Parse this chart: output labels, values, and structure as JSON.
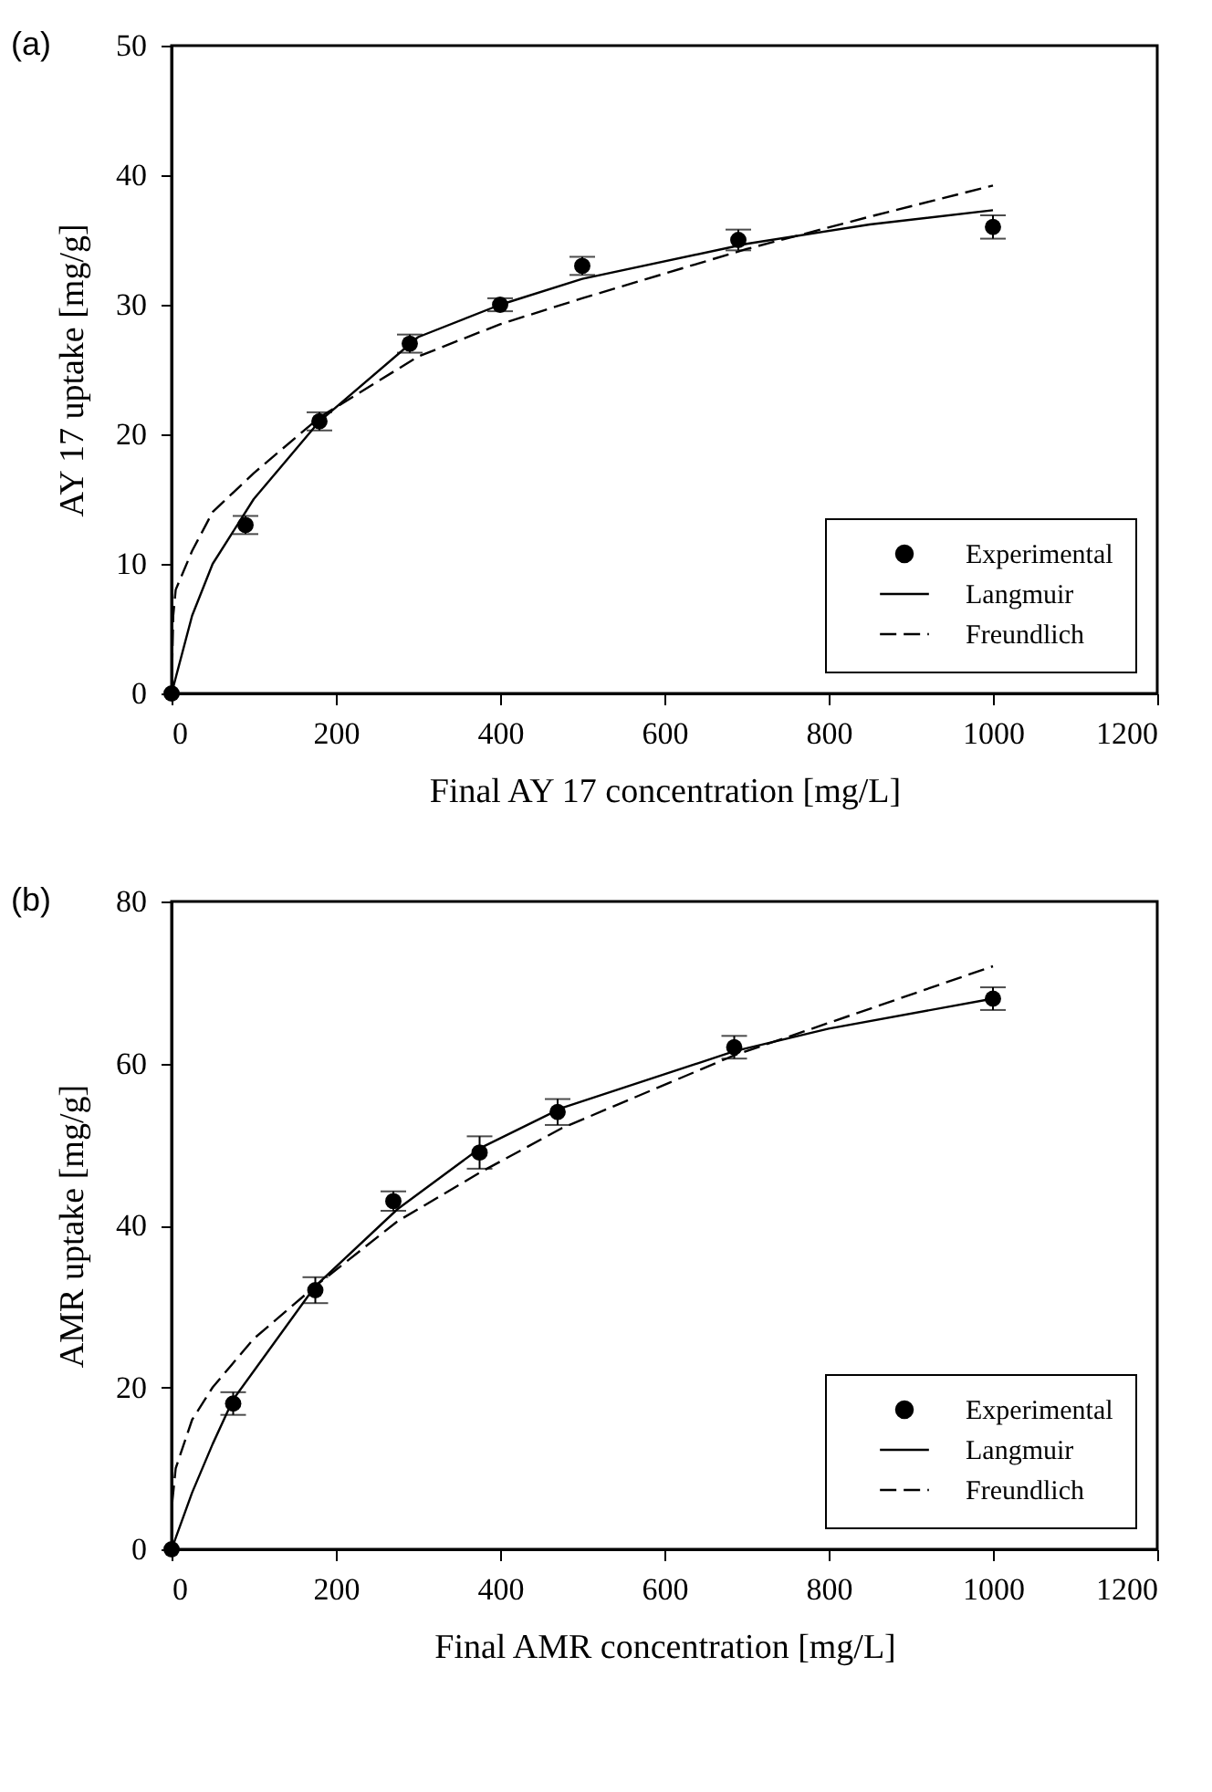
{
  "chart_data": [
    {
      "type": "scatter",
      "title": "(a)",
      "xlabel": "Final AY 17 concentration [mg/L]",
      "ylabel": "AY 17 uptake [mg/g]",
      "xlim": [
        0,
        1200
      ],
      "ylim": [
        0,
        50
      ],
      "xticks": [
        0,
        200,
        400,
        600,
        800,
        1000,
        1200
      ],
      "yticks": [
        0,
        10,
        20,
        30,
        40,
        50
      ],
      "grid": false,
      "legend": "bottom right",
      "series": [
        {
          "name": "Experimental",
          "type": "scatter",
          "marker": "circle",
          "color": "#000000",
          "x": [
            0,
            90,
            180,
            290,
            400,
            500,
            690,
            1000
          ],
          "values": [
            0,
            13,
            21,
            27,
            30,
            33,
            35,
            36
          ],
          "errors": [
            null,
            0.7,
            0.7,
            0.7,
            0.5,
            0.7,
            0.8,
            0.9
          ]
        },
        {
          "name": "Langmuir",
          "type": "line",
          "line_style": "solid",
          "marker": "none",
          "color": "#000000",
          "x": [
            0,
            25,
            50,
            100,
            180,
            300,
            400,
            500,
            700,
            850,
            1000
          ],
          "values": [
            0,
            6,
            10,
            15,
            21,
            27.5,
            30,
            32,
            34.7,
            36.2,
            37.3
          ]
        },
        {
          "name": "Freundlich",
          "type": "line",
          "line_style": "dashed",
          "marker": "none",
          "color": "#000000",
          "x": [
            0,
            2,
            5,
            25,
            50,
            100,
            180,
            300,
            400,
            500,
            700,
            850,
            1000
          ],
          "values": [
            0,
            6,
            8,
            11,
            14,
            17,
            21.3,
            26,
            28.5,
            30.5,
            34.3,
            36.8,
            39.2
          ]
        }
      ]
    },
    {
      "type": "scatter",
      "title": "(b)",
      "xlabel": "Final AMR concentration [mg/L]",
      "ylabel": "AMR uptake [mg/g]",
      "xlim": [
        0,
        1200
      ],
      "ylim": [
        0,
        80
      ],
      "xticks": [
        0,
        200,
        400,
        600,
        800,
        1000,
        1200
      ],
      "yticks": [
        0,
        20,
        40,
        60,
        80
      ],
      "grid": false,
      "legend": "bottom right",
      "series": [
        {
          "name": "Experimental",
          "type": "scatter",
          "marker": "circle",
          "color": "#000000",
          "x": [
            0,
            75,
            175,
            270,
            375,
            470,
            685,
            1000
          ],
          "values": [
            0,
            18,
            32,
            43,
            49,
            54,
            62,
            68
          ],
          "errors": [
            null,
            1.4,
            1.6,
            1.2,
            2,
            1.6,
            1.4,
            1.4
          ]
        },
        {
          "name": "Langmuir",
          "type": "line",
          "line_style": "solid",
          "marker": "none",
          "color": "#000000",
          "x": [
            0,
            25,
            50,
            75,
            100,
            175,
            275,
            375,
            475,
            685,
            800,
            1000
          ],
          "values": [
            0,
            7,
            13,
            18.5,
            22,
            32.5,
            42,
            49.5,
            54.5,
            61.5,
            64.3,
            68
          ]
        },
        {
          "name": "Freundlich",
          "type": "line",
          "line_style": "dashed",
          "marker": "none",
          "color": "#000000",
          "x": [
            0,
            1,
            5,
            25,
            50,
            100,
            175,
            275,
            375,
            475,
            685,
            800,
            1000
          ],
          "values": [
            0,
            6,
            10,
            16,
            20,
            26,
            32.5,
            40.5,
            46.5,
            52,
            61,
            65,
            72
          ]
        }
      ]
    }
  ]
}
